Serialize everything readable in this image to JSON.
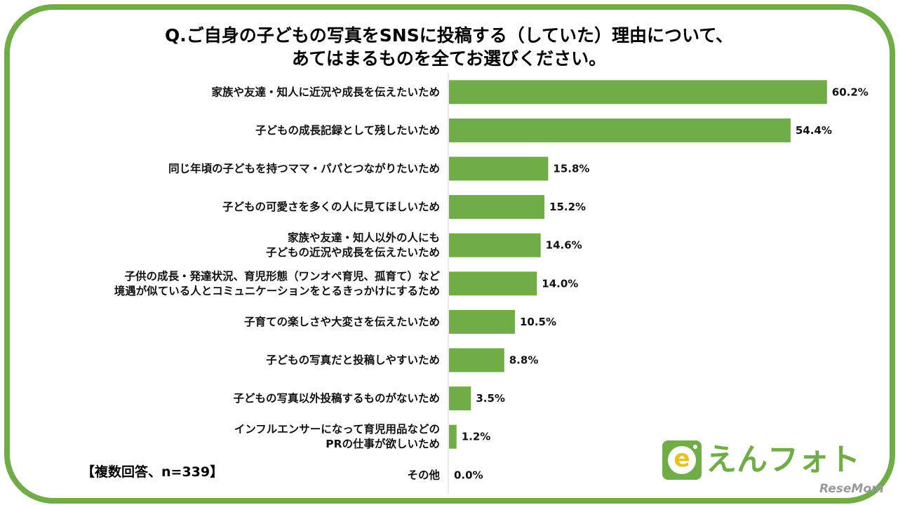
{
  "title": {
    "line1": "Q.ご自身の子どもの写真をSNSに投稿する（していた）理由について、",
    "line2": "あてはまるものを全てお選びください。"
  },
  "note": "【複数回答、n=339】",
  "logo": {
    "badge_letter": "e",
    "text": "えんフォト",
    "icon": "enphoto-camera-icon"
  },
  "source": "ReseMom",
  "colors": {
    "bar": "#70ad47",
    "frame": "#70ad47",
    "axis": "#d9d9d9"
  },
  "chart_data": {
    "type": "bar",
    "orientation": "horizontal",
    "unit": "%",
    "xlim": [
      0,
      65
    ],
    "grid": false,
    "categories": [
      [
        "家族や友達・知人に近況や成長を伝えたいため"
      ],
      [
        "子どもの成長記録として残したいため"
      ],
      [
        "同じ年頃の子どもを持つママ・パパとつながりたいため"
      ],
      [
        "子どもの可愛さを多くの人に見てほしいため"
      ],
      [
        "家族や友達・知人以外の人にも",
        "子どもの近況や成長を伝えたいため"
      ],
      [
        "子供の成長・発達状況、育児形態（ワンオペ育児、孤育て）など",
        "境遇が似ている人とコミュニケーションをとるきっかけにするため"
      ],
      [
        "子育ての楽しさや大変さを伝えたいため"
      ],
      [
        "子どもの写真だと投稿しやすいため"
      ],
      [
        "子どもの写真以外投稿するものがないため"
      ],
      [
        "インフルエンサーになって育児用品などの",
        "PRの仕事が欲しいため"
      ],
      [
        "その他"
      ]
    ],
    "values": [
      60.2,
      54.4,
      15.8,
      15.2,
      14.6,
      14.0,
      10.5,
      8.8,
      3.5,
      1.2,
      0.0
    ],
    "value_labels": [
      "60.2%",
      "54.4%",
      "15.8%",
      "15.2%",
      "14.6%",
      "14.0%",
      "10.5%",
      "8.8%",
      "3.5%",
      "1.2%",
      "0.0%"
    ]
  }
}
